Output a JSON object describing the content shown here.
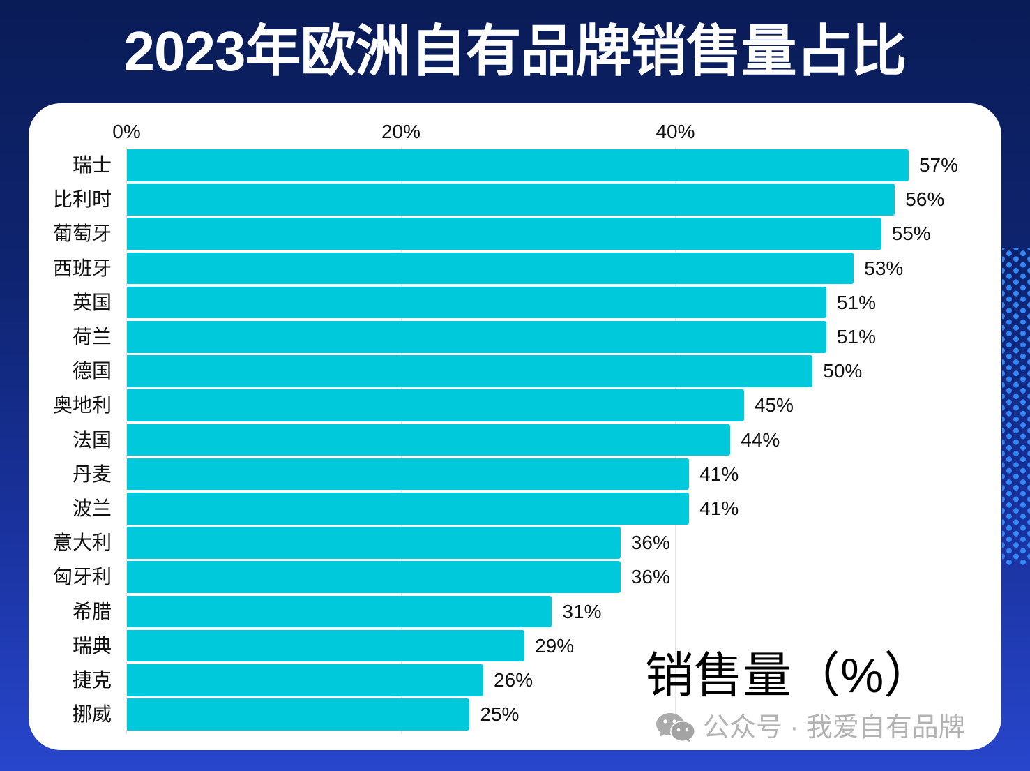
{
  "title": "2023年欧洲自有品牌销售量占比",
  "colors": {
    "background_top": "#0A1C57",
    "background_bottom": "#2846CC",
    "card": "#FFFFFF",
    "bar": "#00C9DC",
    "text": "#111111",
    "watermark": "#B3B3B3",
    "dots": "#3388F8"
  },
  "chart_data": {
    "type": "bar",
    "orientation": "horizontal",
    "title": "2023年欧洲自有品牌销售量占比",
    "xlabel": "销售量（%）",
    "ylabel": "",
    "xlim": [
      0,
      60
    ],
    "x_tick_values": [
      0,
      20,
      40
    ],
    "x_ticks": [
      "0%",
      "20%",
      "40%"
    ],
    "x_axis_position": "top",
    "grid": true,
    "legend": "none",
    "categories": [
      "瑞士",
      "比利时",
      "葡萄牙",
      "西班牙",
      "英国",
      "荷兰",
      "德国",
      "奥地利",
      "法国",
      "丹麦",
      "波兰",
      "意大利",
      "匈牙利",
      "希腊",
      "瑞典",
      "捷克",
      "挪威"
    ],
    "values": [
      57,
      56,
      55,
      53,
      51,
      51,
      50,
      45,
      44,
      41,
      41,
      36,
      36,
      31,
      29,
      26,
      25
    ],
    "data_labels": [
      "57%",
      "56%",
      "55%",
      "53%",
      "51%",
      "51%",
      "50%",
      "45%",
      "44%",
      "41%",
      "41%",
      "36%",
      "36%",
      "31%",
      "29%",
      "26%",
      "25%"
    ],
    "unit": "%"
  },
  "watermark": {
    "icon": "wechat-icon",
    "text": "公众号 · 我爱自有品牌"
  }
}
